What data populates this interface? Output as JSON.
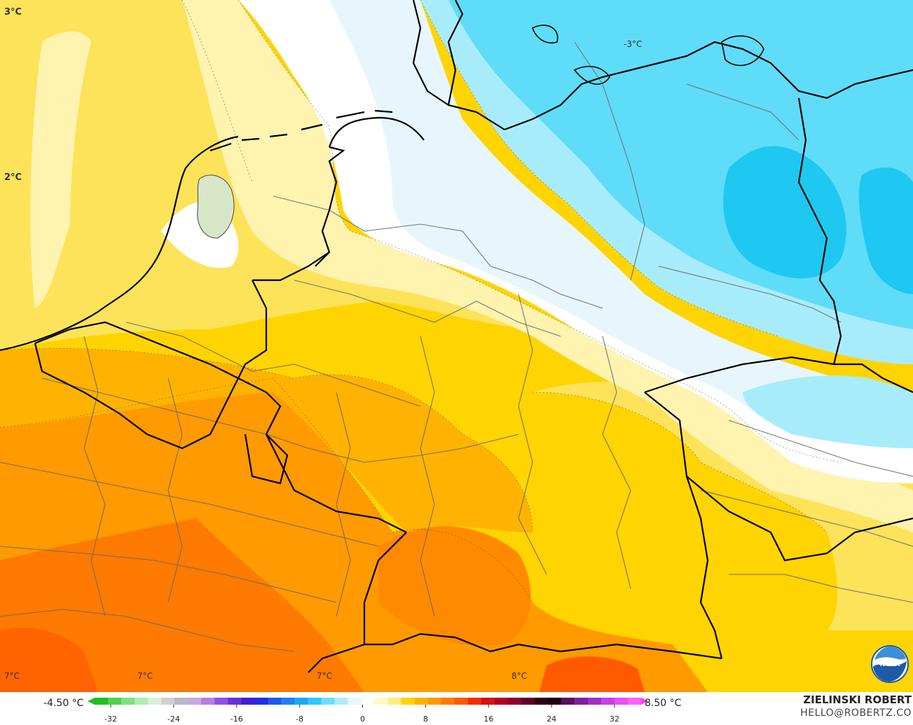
{
  "map": {
    "corner_labels": [
      "3°C",
      "2°C"
    ],
    "contour_labels": [
      "-3°C",
      "7°C",
      "7°C",
      "7°C",
      "8°C"
    ]
  },
  "legend": {
    "min_label": "-4.50 °C",
    "max_label": "8.50 °C",
    "ticks": [
      "-32",
      "-24",
      "-16",
      "-8",
      "0",
      "8",
      "16",
      "24",
      "32"
    ],
    "colors": {
      "cold_deep": "#1ec8f0",
      "cold": "#5fdcf8",
      "cool": "#a8ecfb",
      "near_zero": "#e6f6fc",
      "zero": "#ffffff",
      "mild": "#fff3b0",
      "warm_light": "#fde35a",
      "warm": "#ffd400",
      "warmer": "#ffb300",
      "orange": "#ff9a00",
      "orange_deep": "#ff7a00",
      "red_orange": "#ff5a00"
    }
  },
  "branding": {
    "name": "ZIELINSKI ROBERT",
    "email": "HELLO@ROBERTZ.CO",
    "logo_text": "NOAA"
  }
}
